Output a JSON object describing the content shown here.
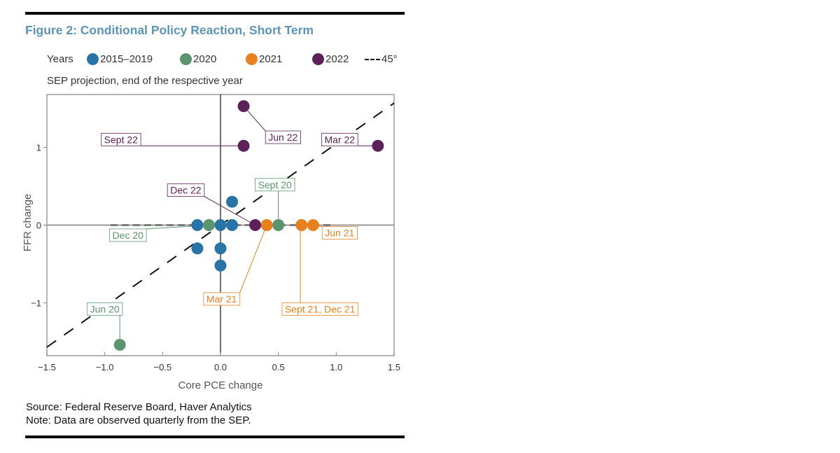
{
  "figure": {
    "title": "Figure 2: Conditional Policy Reaction, Short Term",
    "legend_label": "Years",
    "subtitle": "SEP projection, end of the respective year",
    "source": "Source: Federal Reserve Board, Haver Analytics",
    "note": "Note: Data are observed quarterly from the SEP."
  },
  "chart_data": {
    "type": "scatter",
    "title": "Figure 2: Conditional Policy Reaction, Short Term",
    "xlabel": "Core PCE change",
    "ylabel": "FFR change",
    "xlim": [
      -1.5,
      1.5
    ],
    "ylim": [
      -1.68,
      1.68
    ],
    "x_ticks": [
      -1.5,
      -1.0,
      -0.5,
      0.0,
      0.5,
      1.0,
      1.5
    ],
    "x_tick_labels": [
      "−1.5",
      "−1.0",
      "−0.5",
      "0.0",
      "0.5",
      "1.0",
      "1.5"
    ],
    "y_ticks": [
      1,
      0,
      -1
    ],
    "y_tick_labels": [
      "1",
      "0",
      "−1"
    ],
    "grid": false,
    "legend_position": "top",
    "series": [
      {
        "name": "2015–2019",
        "color": "#2874a6",
        "points": [
          [
            -0.2,
            0
          ],
          [
            0.0,
            0
          ],
          [
            0.1,
            0
          ],
          [
            0.1,
            0.3
          ],
          [
            -0.2,
            -0.3
          ],
          [
            0.0,
            -0.3
          ],
          [
            0.0,
            -0.52
          ]
        ]
      },
      {
        "name": "2020",
        "color": "#5a9570",
        "points": [
          [
            -0.1,
            0
          ],
          [
            0.5,
            0
          ],
          [
            -0.87,
            -1.54
          ]
        ]
      },
      {
        "name": "2021",
        "color": "#e8801e",
        "points": [
          [
            0.4,
            0
          ],
          [
            0.7,
            0
          ],
          [
            0.8,
            0
          ]
        ]
      },
      {
        "name": "2022",
        "color": "#5b2158",
        "points": [
          [
            0.2,
            1.53
          ],
          [
            0.2,
            1.02
          ],
          [
            1.36,
            1.02
          ],
          [
            0.3,
            0
          ]
        ]
      }
    ],
    "reference_line": {
      "name": "45°",
      "from": [
        -1.5,
        -1.57
      ],
      "to": [
        1.5,
        1.57
      ],
      "style": "dashed"
    },
    "zero_dashed_segment": {
      "from": -0.95,
      "to": 0.95
    },
    "annotations": [
      {
        "text": "Sept 22",
        "series": "2022",
        "point": [
          0.2,
          1.02
        ],
        "label_at": [
          -0.86,
          1.1
        ]
      },
      {
        "text": "Jun 22",
        "series": "2022",
        "point": [
          0.2,
          1.53
        ],
        "label_at": [
          0.54,
          1.13
        ]
      },
      {
        "text": "Mar 22",
        "series": "2022",
        "point": [
          1.36,
          1.02
        ],
        "label_at": [
          1.03,
          1.1
        ]
      },
      {
        "text": "Dec 22",
        "series": "2022",
        "point": [
          0.3,
          0
        ],
        "label_at": [
          -0.3,
          0.45
        ]
      },
      {
        "text": "Sept 20",
        "series": "2020",
        "point": [
          0.5,
          0
        ],
        "label_at": [
          0.47,
          0.52
        ]
      },
      {
        "text": "Dec 20",
        "series": "2020",
        "point": [
          -0.1,
          0
        ],
        "label_at": [
          -0.8,
          -0.13
        ]
      },
      {
        "text": "Jun 20",
        "series": "2020",
        "point": [
          -0.87,
          -1.54
        ],
        "label_at": [
          -1.0,
          -1.08
        ]
      },
      {
        "text": "Jun 21",
        "series": "2021",
        "point": [
          0.8,
          0
        ],
        "label_at": [
          1.03,
          -0.1
        ]
      },
      {
        "text": "Mar 21",
        "series": "2021",
        "point": [
          0.4,
          0
        ],
        "label_at": [
          0.01,
          -0.95
        ]
      },
      {
        "text": "Sept 21, Dec 21",
        "series": "2021",
        "point": [
          0.69,
          0
        ],
        "label_at": [
          0.86,
          -1.08
        ]
      }
    ]
  }
}
